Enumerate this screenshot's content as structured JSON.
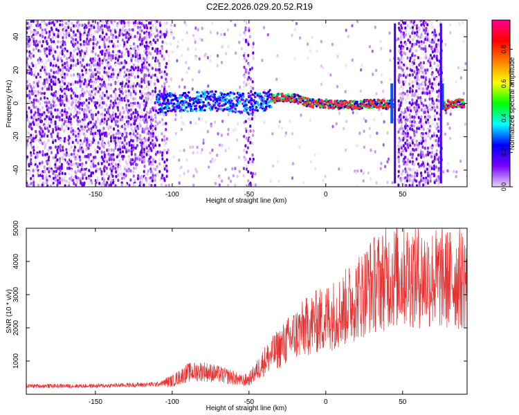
{
  "title": "C2E2.2026.029.20.52.R19",
  "colors": {
    "accent": "#e83030",
    "background": "#ffffff",
    "axis": "#000000"
  },
  "chart_data": [
    {
      "type": "heatmap",
      "xlabel": "Height of straight line (km)",
      "ylabel": "Frequency (Hz)",
      "xlim": [
        -195,
        92
      ],
      "ylim": [
        -50,
        50
      ],
      "x_ticks": [
        -150,
        -100,
        -50,
        0,
        50
      ],
      "y_ticks": [
        -40,
        -20,
        0,
        20,
        40
      ],
      "grid": false,
      "colorbar": {
        "label": "Normalized spectral amplitude",
        "range": [
          0.0,
          0.97
        ],
        "ticks": [
          0.0,
          0.2,
          0.4,
          0.6,
          0.8
        ],
        "colors": [
          "#e8d4f5",
          "#7a00ff",
          "#0000ff",
          "#00ffff",
          "#00ff00",
          "#ffff00",
          "#ff8000",
          "#ff0000",
          "#ff0090"
        ]
      },
      "signal_trace": {
        "x": [
          -110,
          -100,
          -90,
          -80,
          -70,
          -60,
          -55,
          -50,
          -45,
          -40,
          -35,
          -30,
          -25,
          -20,
          -15,
          -10,
          -5,
          0,
          5,
          10,
          15,
          20,
          25,
          30,
          35,
          40,
          43,
          50,
          60,
          70,
          75,
          78,
          80,
          85,
          90
        ],
        "y": [
          0,
          0.5,
          1,
          1.5,
          1,
          0.5,
          0,
          -0.5,
          0.5,
          1.5,
          2.5,
          3.5,
          3.5,
          3,
          1.5,
          0,
          0,
          0,
          -1,
          -1,
          -1,
          -1,
          -0.5,
          -0.5,
          0,
          -1,
          0,
          0,
          0,
          0,
          0,
          -2,
          0,
          0,
          0
        ]
      }
    },
    {
      "type": "line",
      "xlabel": "Height of straight line (km)",
      "ylabel": "SNR (10 * v/v)",
      "xlim": [
        -195,
        92
      ],
      "ylim": [
        0,
        5000
      ],
      "x_ticks": [
        -150,
        -100,
        -50,
        0,
        50
      ],
      "y_ticks": [
        1000,
        2000,
        3000,
        4000,
        5000
      ],
      "grid": false,
      "series": [
        {
          "color": "#e83030",
          "envelope_x": [
            -195,
            -150,
            -110,
            -100,
            -90,
            -80,
            -70,
            -60,
            -55,
            -50,
            -45,
            -40,
            -30,
            -20,
            -10,
            0,
            10,
            20,
            30,
            40,
            50,
            60,
            70,
            80,
            92
          ],
          "envelope_y": [
            250,
            250,
            300,
            400,
            650,
            700,
            600,
            500,
            400,
            450,
            700,
            1000,
            1400,
            1800,
            2100,
            2300,
            2500,
            2900,
            3300,
            3500,
            3600,
            3550,
            3500,
            3450,
            3500
          ]
        }
      ]
    }
  ]
}
